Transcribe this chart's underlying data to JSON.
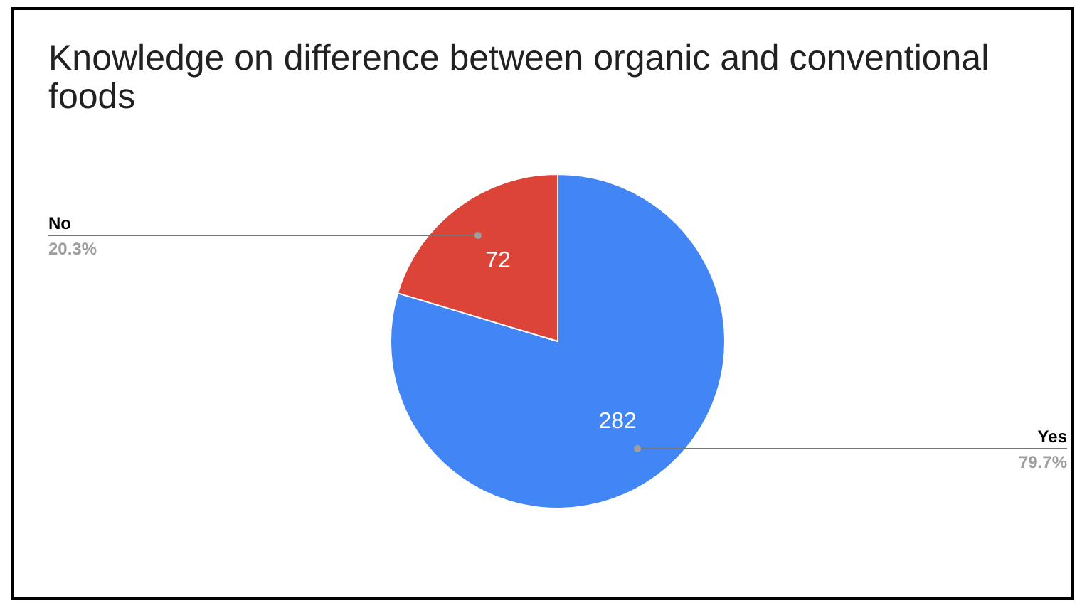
{
  "chart_data": {
    "type": "pie",
    "title": "Knowledge on difference between organic and conventional foods",
    "categories": [
      "Yes",
      "No"
    ],
    "values": [
      282,
      72
    ],
    "colors": [
      "#4285f4",
      "#db4437"
    ],
    "data_labels": true,
    "annotations": [
      "79.7%",
      "20.3%"
    ],
    "legend": false
  }
}
